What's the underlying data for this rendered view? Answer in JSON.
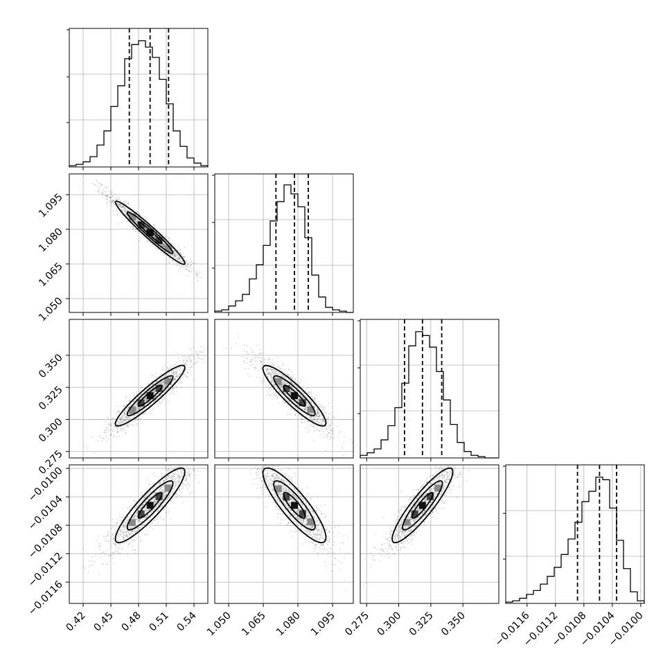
{
  "chart_data": {
    "type": "corner",
    "parameters": [
      {
        "index": 0,
        "range": [
          0.405,
          0.555
        ],
        "ticks": [
          "0.42",
          "0.45",
          "0.48",
          "0.51",
          "0.54"
        ],
        "tick_values": [
          0.42,
          0.45,
          0.48,
          0.51,
          0.54
        ],
        "mean": 0.4925,
        "sigma": 0.0215,
        "quantiles": [
          0.47,
          0.4925,
          0.5125
        ],
        "hist_heights": [
          0.01,
          0.02,
          0.04,
          0.08,
          0.17,
          0.28,
          0.47,
          0.63,
          0.84,
          0.95,
          0.98,
          0.93,
          0.85,
          0.68,
          0.49,
          0.28,
          0.16,
          0.07,
          0.03,
          0.01
        ]
      },
      {
        "index": 1,
        "range": [
          1.044,
          1.104
        ],
        "ticks": [
          "1.050",
          "1.065",
          "1.080",
          "1.095"
        ],
        "tick_values": [
          1.05,
          1.065,
          1.08,
          1.095
        ],
        "mean": 1.0785,
        "sigma": 0.0078,
        "quantiles": [
          1.0705,
          1.0785,
          1.0845
        ],
        "hist_heights": [
          0.01,
          0.02,
          0.05,
          0.09,
          0.14,
          0.26,
          0.37,
          0.52,
          0.71,
          0.86,
          0.99,
          0.92,
          0.82,
          0.58,
          0.29,
          0.12,
          0.04,
          0.02,
          0.01,
          0.0
        ]
      },
      {
        "index": 2,
        "range": [
          0.27,
          0.378
        ],
        "ticks": [
          "0.275",
          "0.300",
          "0.325",
          "0.350"
        ],
        "tick_values": [
          0.275,
          0.3,
          0.325,
          0.35
        ],
        "mean": 0.3185,
        "sigma": 0.0135,
        "quantiles": [
          0.3045,
          0.3185,
          0.3335
        ],
        "hist_heights": [
          0.02,
          0.04,
          0.07,
          0.14,
          0.25,
          0.39,
          0.58,
          0.87,
          0.98,
          0.95,
          0.86,
          0.67,
          0.45,
          0.26,
          0.12,
          0.05,
          0.02,
          0.01,
          0.0,
          0.0
        ]
      },
      {
        "index": 3,
        "range": [
          -0.0119,
          -0.00995
        ],
        "ticks": [
          "−0.0116",
          "−0.0112",
          "−0.0108",
          "−0.0104",
          "−0.0100"
        ],
        "tick_values": [
          -0.0116,
          -0.0112,
          -0.0108,
          -0.0104,
          -0.01
        ],
        "mean": -0.01052,
        "sigma": 0.0003,
        "quantiles": [
          -0.01089,
          -0.01058,
          -0.01034
        ],
        "hist_heights": [
          0.01,
          0.02,
          0.04,
          0.07,
          0.1,
          0.15,
          0.21,
          0.28,
          0.38,
          0.5,
          0.63,
          0.79,
          0.87,
          0.98,
          0.96,
          0.74,
          0.49,
          0.27,
          0.09,
          0.02
        ]
      }
    ],
    "correlations": [
      [
        1,
        -0.97,
        0.93,
        0.9
      ],
      [
        -0.97,
        1,
        -0.9,
        -0.86
      ],
      [
        0.93,
        -0.9,
        1,
        0.9
      ],
      [
        0.9,
        -0.86,
        0.9,
        1
      ]
    ],
    "y_axis_ticks": {
      "1": [
        "1.050",
        "1.065",
        "1.080",
        "1.095"
      ],
      "2": [
        "0.275",
        "0.300",
        "0.325",
        "0.350"
      ],
      "3": [
        "−0.0116",
        "−0.0112",
        "−0.0108",
        "−0.0104",
        "−0.0100"
      ]
    },
    "grid": true,
    "colors": {
      "contour": "#000000",
      "scatter": "#6b6b6b",
      "grid": "#b0b0b0"
    }
  }
}
